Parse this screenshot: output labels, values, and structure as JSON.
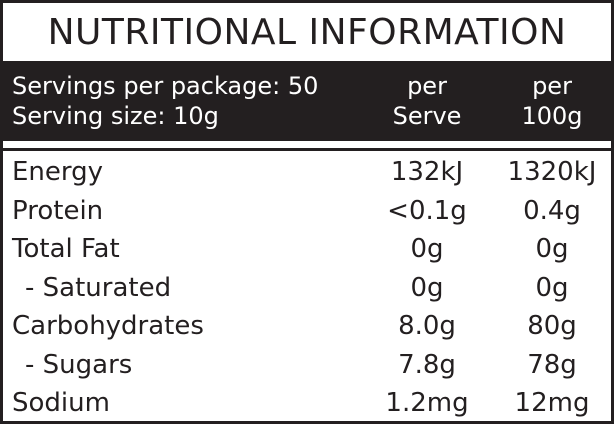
{
  "title": "NUTRITIONAL INFORMATION",
  "header": {
    "servings_line": "Servings per package: 50",
    "serving_size_line": "Serving size: 10g",
    "col1_line1": "per",
    "col1_line2": "Serve",
    "col2_line1": "per",
    "col2_line2": "100g"
  },
  "rows": [
    {
      "name": "Energy",
      "per_serve": "132kJ",
      "per_100g": "1320kJ"
    },
    {
      "name": "Protein",
      "per_serve": "<0.1g",
      "per_100g": "0.4g"
    },
    {
      "name": "Total Fat",
      "per_serve": "0g",
      "per_100g": "0g"
    },
    {
      "name": "- Saturated",
      "per_serve": "0g",
      "per_100g": "0g"
    },
    {
      "name": "Carbohydrates",
      "per_serve": "8.0g",
      "per_100g": "80g"
    },
    {
      "name": "- Sugars",
      "per_serve": "7.8g",
      "per_100g": "78g"
    },
    {
      "name": "Sodium",
      "per_serve": "1.2mg",
      "per_100g": "12mg"
    }
  ],
  "colors": {
    "ink": "#231f20",
    "background": "#ffffff"
  }
}
